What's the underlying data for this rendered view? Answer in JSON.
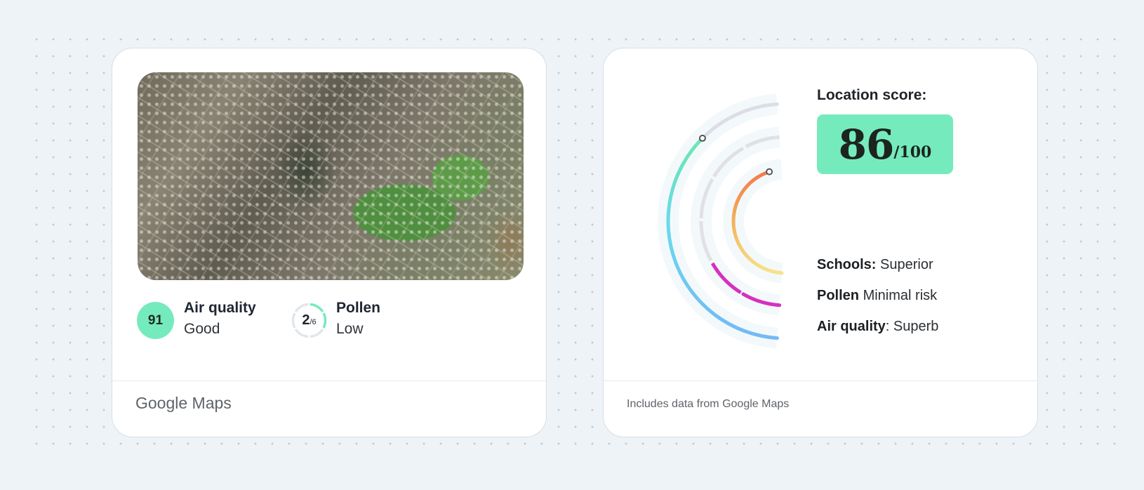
{
  "left_card": {
    "air_quality": {
      "value": "91",
      "label": "Air quality",
      "status": "Good",
      "color": "#75ebbd"
    },
    "pollen": {
      "value": "2",
      "max": "/6",
      "label": "Pollen",
      "status": "Low",
      "level_fraction": 0.333,
      "color": "#75ebbd"
    },
    "footer": "Google Maps"
  },
  "right_card": {
    "location_label": "Location score:",
    "score": "86",
    "score_max": "/100",
    "rows": [
      {
        "label": "Schools:",
        "value": "Superior"
      },
      {
        "label": "Pollen",
        "value": "Minimal risk"
      },
      {
        "label": "Air quality",
        "value": ": Superb"
      }
    ],
    "footer": "Includes data from Google Maps",
    "accent_color": "#75ebbd"
  }
}
